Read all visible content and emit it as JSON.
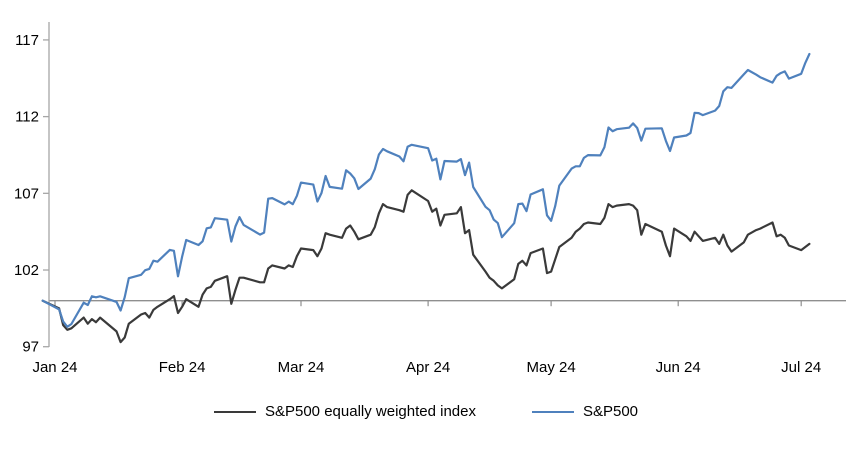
{
  "chart_data": {
    "type": "line",
    "title": "",
    "legend_position": "bottom",
    "x_axis": {
      "tick_labels": [
        "Jan 24",
        "Feb 24",
        "Mar 24",
        "Apr 24",
        "May 24",
        "Jun 24",
        "Jul 24"
      ],
      "baseline_value": 100
    },
    "y_axis": {
      "ticks": [
        97,
        102,
        107,
        112,
        117
      ],
      "min": 97,
      "max": 117
    },
    "grid": "off",
    "dates": [
      "12-29",
      "01-02",
      "01-03",
      "01-04",
      "01-05",
      "01-08",
      "01-09",
      "01-10",
      "01-11",
      "01-12",
      "01-16",
      "01-17",
      "01-18",
      "01-19",
      "01-22",
      "01-23",
      "01-24",
      "01-25",
      "01-26",
      "01-29",
      "01-30",
      "01-31",
      "02-01",
      "02-02",
      "02-05",
      "02-06",
      "02-07",
      "02-08",
      "02-09",
      "02-12",
      "02-13",
      "02-14",
      "02-15",
      "02-16",
      "02-20",
      "02-21",
      "02-22",
      "02-23",
      "02-26",
      "02-27",
      "02-28",
      "02-29",
      "03-01",
      "03-04",
      "03-05",
      "03-06",
      "03-07",
      "03-08",
      "03-11",
      "03-12",
      "03-13",
      "03-14",
      "03-15",
      "03-18",
      "03-19",
      "03-20",
      "03-21",
      "03-22",
      "03-25",
      "03-26",
      "03-27",
      "03-28",
      "04-01",
      "04-02",
      "04-03",
      "04-04",
      "04-05",
      "04-08",
      "04-09",
      "04-10",
      "04-11",
      "04-12",
      "04-15",
      "04-16",
      "04-17",
      "04-18",
      "04-19",
      "04-22",
      "04-23",
      "04-24",
      "04-25",
      "04-26",
      "04-29",
      "04-30",
      "05-01",
      "05-02",
      "05-03",
      "05-06",
      "05-07",
      "05-08",
      "05-09",
      "05-10",
      "05-13",
      "05-14",
      "05-15",
      "05-16",
      "05-17",
      "05-20",
      "05-21",
      "05-22",
      "05-23",
      "05-24",
      "05-28",
      "05-29",
      "05-30",
      "05-31",
      "06-03",
      "06-04",
      "06-05",
      "06-06",
      "06-07",
      "06-10",
      "06-11",
      "06-12",
      "06-13",
      "06-14",
      "06-17",
      "06-18",
      "06-20",
      "06-21",
      "06-24",
      "06-25",
      "06-26",
      "06-27",
      "06-28",
      "07-01",
      "07-02",
      "07-03"
    ],
    "series": [
      {
        "name": "S&P500 equally weighted index",
        "color": "#3a3a3a",
        "values": [
          100.0,
          99.5,
          98.4,
          98.1,
          98.2,
          98.9,
          98.5,
          98.8,
          98.6,
          98.9,
          98.0,
          97.3,
          97.6,
          98.5,
          99.1,
          99.2,
          98.9,
          99.4,
          99.6,
          100.1,
          100.3,
          99.2,
          99.6,
          100.1,
          99.6,
          100.4,
          100.8,
          100.9,
          101.3,
          101.6,
          99.8,
          100.7,
          101.5,
          101.5,
          101.2,
          101.2,
          102.1,
          102.3,
          102.1,
          102.3,
          102.2,
          102.9,
          103.4,
          103.3,
          102.9,
          103.4,
          104.4,
          104.3,
          104.1,
          104.7,
          104.9,
          104.5,
          104.0,
          104.3,
          104.8,
          105.7,
          106.3,
          106.1,
          105.9,
          105.8,
          106.9,
          107.2,
          106.5,
          105.8,
          106.0,
          104.9,
          105.6,
          105.7,
          106.1,
          104.4,
          104.6,
          103.0,
          101.9,
          101.5,
          101.3,
          101.0,
          100.8,
          101.4,
          102.4,
          102.6,
          102.3,
          103.1,
          103.4,
          101.8,
          101.9,
          102.7,
          103.5,
          104.1,
          104.5,
          104.7,
          105.0,
          105.1,
          105.0,
          105.4,
          106.3,
          106.1,
          106.2,
          106.3,
          106.2,
          105.9,
          104.3,
          105.0,
          104.5,
          103.6,
          102.9,
          104.7,
          104.2,
          103.9,
          104.5,
          104.2,
          103.9,
          104.1,
          103.7,
          104.3,
          103.6,
          103.2,
          103.8,
          104.3,
          104.6,
          104.7,
          105.1,
          104.2,
          104.3,
          104.1,
          103.6,
          103.3,
          103.5,
          103.7
        ]
      },
      {
        "name": "S&P500",
        "color": "#4f81bd",
        "values": [
          100.0,
          99.43,
          98.64,
          98.3,
          98.48,
          99.87,
          99.72,
          100.29,
          100.22,
          100.29,
          99.92,
          99.36,
          100.23,
          101.47,
          101.69,
          101.99,
          102.07,
          102.61,
          102.54,
          103.31,
          103.25,
          101.59,
          102.86,
          103.96,
          103.63,
          103.87,
          104.72,
          104.78,
          105.38,
          105.28,
          103.85,
          104.84,
          105.45,
          104.94,
          104.31,
          104.44,
          106.65,
          106.69,
          106.28,
          106.46,
          106.29,
          106.84,
          107.7,
          107.57,
          106.47,
          107.02,
          108.13,
          107.42,
          107.3,
          108.5,
          108.29,
          107.98,
          107.28,
          107.96,
          108.57,
          109.53,
          109.89,
          109.74,
          109.4,
          109.09,
          110.03,
          110.16,
          109.94,
          109.14,
          109.26,
          107.91,
          109.11,
          109.07,
          109.23,
          108.19,
          109.0,
          107.41,
          106.12,
          105.9,
          105.29,
          105.06,
          104.14,
          105.05,
          106.3,
          106.33,
          105.84,
          106.92,
          107.26,
          105.57,
          105.21,
          106.17,
          107.5,
          108.61,
          108.76,
          108.76,
          109.31,
          109.49,
          109.47,
          110.0,
          111.29,
          111.05,
          111.18,
          111.28,
          111.56,
          111.26,
          110.44,
          111.21,
          111.24,
          110.42,
          109.76,
          110.64,
          110.77,
          110.93,
          112.25,
          112.23,
          112.1,
          112.39,
          112.69,
          113.65,
          113.92,
          113.87,
          114.75,
          115.04,
          114.74,
          114.57,
          114.22,
          114.66,
          114.84,
          114.95,
          114.48,
          114.79,
          115.5,
          116.08
        ]
      }
    ]
  },
  "colors": {
    "axis": "#a6a6a6",
    "baseline": "#8f8f8f",
    "text": "#000000",
    "background": "#ffffff"
  }
}
